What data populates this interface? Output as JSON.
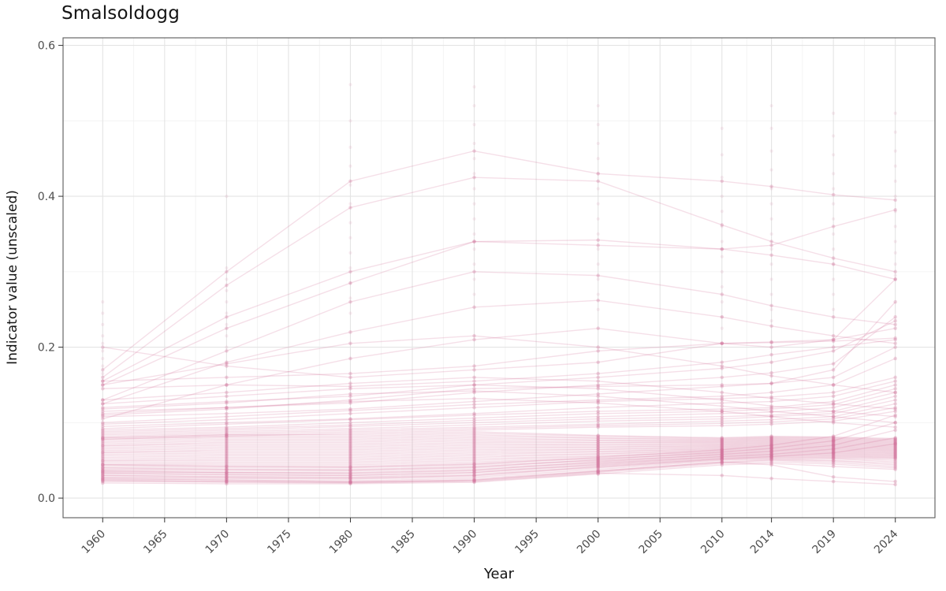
{
  "page": {
    "title": "Smalsoldogg"
  },
  "chart_data": {
    "type": "line",
    "title": "Smalsoldogg",
    "xlabel": "Year",
    "ylabel": "Indicator value (unscaled)",
    "legend": "none",
    "grid": true,
    "x_ticks": [
      1960,
      1965,
      1970,
      1975,
      1980,
      1985,
      1990,
      1995,
      2000,
      2005,
      2010,
      2014,
      2019,
      2024
    ],
    "y_ticks": [
      0.0,
      0.2,
      0.4,
      0.6
    ],
    "y_minor_ticks": [
      0.1,
      0.3,
      0.5
    ],
    "x_range": [
      1956.8,
      2027.2
    ],
    "y_range": [
      -0.026,
      0.61
    ],
    "observation_years": [
      1960,
      1970,
      1980,
      1990,
      2000,
      2010,
      2014,
      2019,
      2024
    ],
    "style": {
      "line_color": "#d06c96",
      "line_opacity": 0.22,
      "point_opacity": 0.28,
      "extra_point_opacity": 0.12,
      "grid_major": "#e4e4e4",
      "grid_minor": "#f1f1f1",
      "panel_border": "#595959",
      "tick_color": "#333333",
      "tick_text": "#4d4d4d",
      "text_color": "#141414"
    },
    "series": [
      [
        0.17,
        0.3,
        0.42,
        0.46,
        0.43,
        0.42,
        0.413,
        0.402,
        0.395
      ],
      [
        0.16,
        0.282,
        0.385,
        0.425,
        0.42,
        0.362,
        0.34,
        0.318,
        0.3
      ],
      [
        0.155,
        0.24,
        0.3,
        0.34,
        0.335,
        0.33,
        0.335,
        0.36,
        0.382
      ],
      [
        0.15,
        0.225,
        0.285,
        0.34,
        0.342,
        0.33,
        0.322,
        0.31,
        0.29
      ],
      [
        0.13,
        0.195,
        0.26,
        0.3,
        0.295,
        0.27,
        0.255,
        0.24,
        0.23
      ],
      [
        0.125,
        0.18,
        0.22,
        0.253,
        0.262,
        0.24,
        0.228,
        0.215,
        0.205
      ],
      [
        0.105,
        0.15,
        0.185,
        0.21,
        0.225,
        0.205,
        0.2,
        0.21,
        0.225
      ],
      [
        0.2,
        0.175,
        0.16,
        0.17,
        0.18,
        0.205,
        0.207,
        0.21,
        0.29
      ],
      [
        0.155,
        0.16,
        0.165,
        0.175,
        0.195,
        0.205,
        0.206,
        0.208,
        0.212
      ],
      [
        0.145,
        0.15,
        0.148,
        0.155,
        0.165,
        0.18,
        0.19,
        0.2,
        0.21
      ],
      [
        0.12,
        0.128,
        0.135,
        0.15,
        0.16,
        0.172,
        0.18,
        0.195,
        0.235
      ],
      [
        0.115,
        0.12,
        0.126,
        0.14,
        0.15,
        0.16,
        0.166,
        0.178,
        0.24
      ],
      [
        0.11,
        0.118,
        0.13,
        0.145,
        0.148,
        0.15,
        0.152,
        0.16,
        0.2
      ],
      [
        0.108,
        0.112,
        0.118,
        0.128,
        0.138,
        0.148,
        0.152,
        0.17,
        0.26
      ],
      [
        0.1,
        0.108,
        0.116,
        0.124,
        0.13,
        0.135,
        0.14,
        0.15,
        0.185
      ],
      [
        0.098,
        0.104,
        0.112,
        0.12,
        0.128,
        0.132,
        0.134,
        0.14,
        0.16
      ],
      [
        0.095,
        0.1,
        0.105,
        0.112,
        0.12,
        0.126,
        0.128,
        0.135,
        0.155
      ],
      [
        0.092,
        0.098,
        0.104,
        0.11,
        0.115,
        0.118,
        0.12,
        0.128,
        0.15
      ],
      [
        0.09,
        0.094,
        0.1,
        0.106,
        0.112,
        0.115,
        0.118,
        0.124,
        0.145
      ],
      [
        0.088,
        0.092,
        0.097,
        0.103,
        0.108,
        0.112,
        0.114,
        0.12,
        0.14
      ],
      [
        0.086,
        0.09,
        0.095,
        0.1,
        0.105,
        0.108,
        0.11,
        0.115,
        0.135
      ],
      [
        0.084,
        0.088,
        0.092,
        0.097,
        0.102,
        0.105,
        0.108,
        0.112,
        0.13
      ],
      [
        0.082,
        0.086,
        0.09,
        0.094,
        0.098,
        0.102,
        0.104,
        0.108,
        0.125
      ],
      [
        0.08,
        0.084,
        0.088,
        0.092,
        0.096,
        0.099,
        0.101,
        0.105,
        0.12
      ],
      [
        0.078,
        0.082,
        0.086,
        0.09,
        0.094,
        0.096,
        0.098,
        0.102,
        0.115
      ],
      [
        0.13,
        0.14,
        0.152,
        0.16,
        0.155,
        0.14,
        0.132,
        0.125,
        0.118
      ],
      [
        0.125,
        0.135,
        0.145,
        0.15,
        0.145,
        0.13,
        0.122,
        0.115,
        0.108
      ],
      [
        0.118,
        0.126,
        0.138,
        0.142,
        0.135,
        0.122,
        0.115,
        0.108,
        0.1
      ],
      [
        0.112,
        0.12,
        0.128,
        0.132,
        0.126,
        0.115,
        0.108,
        0.1,
        0.094
      ],
      [
        0.15,
        0.178,
        0.205,
        0.215,
        0.2,
        0.175,
        0.162,
        0.15,
        0.14
      ],
      [
        0.02,
        0.019,
        0.019,
        0.021,
        0.032,
        0.044,
        0.046,
        0.042,
        0.038
      ],
      [
        0.022,
        0.021,
        0.02,
        0.023,
        0.034,
        0.046,
        0.048,
        0.045,
        0.04
      ],
      [
        0.024,
        0.022,
        0.021,
        0.024,
        0.035,
        0.047,
        0.05,
        0.047,
        0.042
      ],
      [
        0.025,
        0.024,
        0.023,
        0.026,
        0.036,
        0.048,
        0.051,
        0.049,
        0.044
      ],
      [
        0.027,
        0.026,
        0.025,
        0.028,
        0.038,
        0.05,
        0.052,
        0.05,
        0.046
      ],
      [
        0.028,
        0.027,
        0.026,
        0.03,
        0.04,
        0.051,
        0.053,
        0.052,
        0.048
      ],
      [
        0.03,
        0.029,
        0.028,
        0.032,
        0.041,
        0.052,
        0.054,
        0.053,
        0.05
      ],
      [
        0.032,
        0.031,
        0.03,
        0.034,
        0.043,
        0.053,
        0.055,
        0.054,
        0.052
      ],
      [
        0.034,
        0.033,
        0.032,
        0.036,
        0.044,
        0.054,
        0.056,
        0.055,
        0.053
      ],
      [
        0.035,
        0.034,
        0.034,
        0.038,
        0.046,
        0.055,
        0.057,
        0.056,
        0.054
      ],
      [
        0.037,
        0.036,
        0.036,
        0.04,
        0.047,
        0.056,
        0.058,
        0.057,
        0.055
      ],
      [
        0.038,
        0.038,
        0.038,
        0.042,
        0.049,
        0.057,
        0.059,
        0.058,
        0.056
      ],
      [
        0.04,
        0.04,
        0.04,
        0.044,
        0.05,
        0.058,
        0.06,
        0.059,
        0.057
      ],
      [
        0.042,
        0.042,
        0.042,
        0.046,
        0.052,
        0.059,
        0.061,
        0.06,
        0.058
      ],
      [
        0.044,
        0.044,
        0.044,
        0.048,
        0.053,
        0.06,
        0.062,
        0.061,
        0.059
      ],
      [
        0.045,
        0.046,
        0.046,
        0.05,
        0.055,
        0.061,
        0.063,
        0.062,
        0.06
      ],
      [
        0.047,
        0.048,
        0.048,
        0.052,
        0.056,
        0.062,
        0.064,
        0.063,
        0.061
      ],
      [
        0.049,
        0.05,
        0.05,
        0.054,
        0.058,
        0.063,
        0.065,
        0.064,
        0.062
      ],
      [
        0.05,
        0.052,
        0.052,
        0.056,
        0.059,
        0.064,
        0.066,
        0.065,
        0.063
      ],
      [
        0.052,
        0.054,
        0.054,
        0.058,
        0.061,
        0.065,
        0.067,
        0.066,
        0.064
      ],
      [
        0.054,
        0.056,
        0.056,
        0.06,
        0.062,
        0.066,
        0.068,
        0.067,
        0.065
      ],
      [
        0.056,
        0.058,
        0.058,
        0.062,
        0.064,
        0.067,
        0.069,
        0.068,
        0.066
      ],
      [
        0.058,
        0.06,
        0.06,
        0.064,
        0.065,
        0.068,
        0.07,
        0.069,
        0.067
      ],
      [
        0.06,
        0.062,
        0.062,
        0.066,
        0.067,
        0.069,
        0.071,
        0.07,
        0.068
      ],
      [
        0.061,
        0.064,
        0.064,
        0.068,
        0.068,
        0.07,
        0.072,
        0.071,
        0.069
      ],
      [
        0.063,
        0.066,
        0.066,
        0.07,
        0.07,
        0.071,
        0.073,
        0.072,
        0.07
      ],
      [
        0.065,
        0.068,
        0.068,
        0.072,
        0.071,
        0.072,
        0.074,
        0.073,
        0.071
      ],
      [
        0.067,
        0.07,
        0.07,
        0.074,
        0.073,
        0.073,
        0.075,
        0.074,
        0.072
      ],
      [
        0.069,
        0.072,
        0.072,
        0.076,
        0.074,
        0.074,
        0.076,
        0.075,
        0.073
      ],
      [
        0.07,
        0.074,
        0.074,
        0.078,
        0.076,
        0.075,
        0.077,
        0.076,
        0.074
      ],
      [
        0.072,
        0.076,
        0.076,
        0.08,
        0.077,
        0.076,
        0.078,
        0.077,
        0.075
      ],
      [
        0.074,
        0.078,
        0.078,
        0.082,
        0.079,
        0.077,
        0.079,
        0.078,
        0.076
      ],
      [
        0.076,
        0.08,
        0.08,
        0.084,
        0.08,
        0.078,
        0.08,
        0.079,
        0.077
      ],
      [
        0.078,
        0.082,
        0.082,
        0.086,
        0.082,
        0.079,
        0.081,
        0.08,
        0.078
      ],
      [
        0.08,
        0.084,
        0.084,
        0.088,
        0.083,
        0.08,
        0.082,
        0.081,
        0.079
      ],
      [
        0.026,
        0.024,
        0.022,
        0.024,
        0.036,
        0.048,
        0.044,
        0.028,
        0.022
      ],
      [
        0.023,
        0.022,
        0.021,
        0.022,
        0.033,
        0.03,
        0.026,
        0.022,
        0.018
      ],
      [
        0.03,
        0.028,
        0.027,
        0.03,
        0.042,
        0.052,
        0.055,
        0.06,
        0.072
      ],
      [
        0.033,
        0.031,
        0.03,
        0.034,
        0.045,
        0.055,
        0.058,
        0.065,
        0.08
      ],
      [
        0.036,
        0.034,
        0.033,
        0.037,
        0.048,
        0.058,
        0.062,
        0.07,
        0.09
      ],
      [
        0.04,
        0.038,
        0.037,
        0.041,
        0.051,
        0.061,
        0.066,
        0.076,
        0.1
      ],
      [
        0.044,
        0.042,
        0.041,
        0.045,
        0.054,
        0.064,
        0.07,
        0.082,
        0.11
      ]
    ],
    "extra_points": {
      "1960": [
        0.26,
        0.245,
        0.23,
        0.215,
        0.205,
        0.195,
        0.185,
        0.175,
        0.165
      ],
      "1970": [
        0.4,
        0.305,
        0.29,
        0.275,
        0.26,
        0.245,
        0.23,
        0.215,
        0.2
      ],
      "1980": [
        0.548,
        0.5,
        0.465,
        0.44,
        0.415,
        0.39,
        0.365,
        0.345,
        0.325,
        0.305,
        0.285,
        0.265,
        0.245
      ],
      "1990": [
        0.545,
        0.52,
        0.495,
        0.47,
        0.45,
        0.43,
        0.41,
        0.39,
        0.37,
        0.35,
        0.33,
        0.31,
        0.29,
        0.27
      ],
      "2000": [
        0.52,
        0.495,
        0.47,
        0.45,
        0.43,
        0.41,
        0.39,
        0.37,
        0.35,
        0.33,
        0.31,
        0.29,
        0.27,
        0.25
      ],
      "2010": [
        0.49,
        0.455,
        0.425,
        0.4,
        0.38,
        0.36,
        0.34,
        0.32,
        0.3,
        0.28,
        0.26,
        0.24,
        0.225
      ],
      "2014": [
        0.52,
        0.49,
        0.46,
        0.435,
        0.41,
        0.39,
        0.37,
        0.35,
        0.33,
        0.31,
        0.29,
        0.27,
        0.25,
        0.235
      ],
      "2019": [
        0.51,
        0.48,
        0.455,
        0.43,
        0.41,
        0.39,
        0.37,
        0.35,
        0.33,
        0.31,
        0.29,
        0.27,
        0.25
      ],
      "2024": [
        0.51,
        0.485,
        0.46,
        0.44,
        0.42,
        0.4,
        0.38,
        0.36,
        0.34,
        0.325,
        0.31,
        0.295
      ]
    }
  }
}
